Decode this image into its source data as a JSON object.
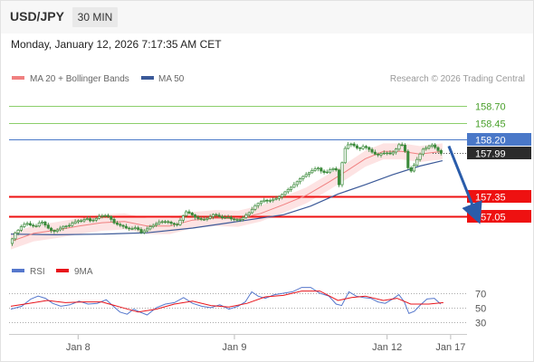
{
  "header": {
    "symbol": "USD/JPY",
    "timeframe": "30 MIN",
    "datetime": "Monday, January 12, 2026 7:17:35 AM CET"
  },
  "legend": {
    "ma20_bb": "MA 20 + Bollinger Bands",
    "ma50": "MA 50",
    "credit": "Research © 2026 Trading Central"
  },
  "colors": {
    "candle": "#3a8a3a",
    "ma20": "#f08080",
    "ma50": "#3b5998",
    "bb_fill": "#fde3e3",
    "resistance": "#8ccf6b",
    "pivot": "#4a78c8",
    "support": "#ee1111",
    "rsi": "#5577cc",
    "rsi_ma": "#e8141b",
    "arrow": "#2a5caa"
  },
  "chart_data": [
    {
      "type": "candlestick",
      "title": "",
      "ylim": [
        156.45,
        159.0
      ],
      "x_ticks": [
        "Jan 8",
        "Jan 9",
        "Jan 12",
        "Jan 17"
      ],
      "series": [
        {
          "name": "MA 20 + Bollinger Bands"
        },
        {
          "name": "MA 50"
        }
      ],
      "price_points": [
        [
          0,
          156.64
        ],
        [
          3,
          156.7
        ],
        [
          6,
          156.79
        ],
        [
          10,
          156.84
        ],
        [
          15,
          156.92
        ],
        [
          20,
          156.94
        ],
        [
          25,
          156.9
        ],
        [
          30,
          156.9
        ],
        [
          35,
          156.98
        ],
        [
          40,
          156.91
        ],
        [
          45,
          156.84
        ],
        [
          50,
          156.82
        ],
        [
          55,
          156.86
        ],
        [
          60,
          156.9
        ],
        [
          65,
          156.9
        ],
        [
          70,
          156.95
        ],
        [
          75,
          156.98
        ],
        [
          80,
          156.98
        ],
        [
          85,
          157.02
        ],
        [
          90,
          156.97
        ],
        [
          95,
          157.01
        ],
        [
          100,
          157.05
        ],
        [
          105,
          157.06
        ],
        [
          110,
          157.04
        ],
        [
          115,
          156.95
        ],
        [
          120,
          156.92
        ],
        [
          125,
          156.9
        ],
        [
          130,
          156.86
        ],
        [
          135,
          156.86
        ],
        [
          140,
          156.88
        ],
        [
          145,
          156.8
        ],
        [
          150,
          156.84
        ],
        [
          155,
          156.89
        ],
        [
          160,
          156.92
        ],
        [
          165,
          156.96
        ],
        [
          170,
          156.97
        ],
        [
          175,
          156.96
        ],
        [
          180,
          156.93
        ],
        [
          185,
          156.92
        ],
        [
          190,
          157.03
        ],
        [
          195,
          157.12
        ],
        [
          200,
          157.08
        ],
        [
          205,
          157.03
        ],
        [
          210,
          157.0
        ],
        [
          215,
          157.0
        ],
        [
          220,
          157.03
        ],
        [
          225,
          157.08
        ],
        [
          230,
          157.05
        ],
        [
          235,
          157.02
        ],
        [
          240,
          157.04
        ],
        [
          245,
          157.0
        ],
        [
          250,
          157.0
        ],
        [
          255,
          157.0
        ],
        [
          260,
          157.06
        ],
        [
          265,
          157.11
        ],
        [
          270,
          157.2
        ],
        [
          275,
          157.25
        ],
        [
          280,
          157.29
        ],
        [
          285,
          157.27
        ],
        [
          290,
          157.3
        ],
        [
          295,
          157.32
        ],
        [
          300,
          157.37
        ],
        [
          305,
          157.43
        ],
        [
          310,
          157.48
        ],
        [
          315,
          157.54
        ],
        [
          320,
          157.61
        ],
        [
          325,
          157.66
        ],
        [
          330,
          157.7
        ],
        [
          335,
          157.75
        ],
        [
          340,
          157.77
        ],
        [
          345,
          157.7
        ],
        [
          350,
          157.71
        ],
        [
          355,
          157.77
        ],
        [
          360,
          157.74
        ],
        [
          363,
          157.52
        ],
        [
          366,
          157.83
        ],
        [
          370,
          158.09
        ],
        [
          375,
          158.14
        ],
        [
          380,
          158.1
        ],
        [
          385,
          158.05
        ],
        [
          390,
          158.1
        ],
        [
          395,
          158.06
        ],
        [
          400,
          158.0
        ],
        [
          405,
          157.96
        ],
        [
          410,
          157.99
        ],
        [
          415,
          158.0
        ],
        [
          420,
          157.98
        ],
        [
          425,
          158.04
        ],
        [
          430,
          158.14
        ],
        [
          435,
          158.08
        ],
        [
          438,
          157.79
        ],
        [
          442,
          157.72
        ],
        [
          445,
          157.8
        ],
        [
          450,
          157.93
        ],
        [
          455,
          158.05
        ],
        [
          460,
          158.08
        ],
        [
          465,
          158.12
        ],
        [
          470,
          158.06
        ],
        [
          475,
          157.99
        ]
      ],
      "ma20_points": [
        [
          0,
          156.67
        ],
        [
          25,
          156.79
        ],
        [
          50,
          156.84
        ],
        [
          75,
          156.9
        ],
        [
          100,
          156.95
        ],
        [
          125,
          156.97
        ],
        [
          150,
          156.9
        ],
        [
          175,
          156.9
        ],
        [
          200,
          156.99
        ],
        [
          225,
          157.02
        ],
        [
          250,
          157.01
        ],
        [
          275,
          157.09
        ],
        [
          300,
          157.22
        ],
        [
          325,
          157.36
        ],
        [
          350,
          157.56
        ],
        [
          370,
          157.73
        ],
        [
          390,
          157.91
        ],
        [
          410,
          158.02
        ],
        [
          430,
          158.02
        ],
        [
          450,
          157.98
        ],
        [
          475,
          158.02
        ]
      ],
      "ma50_points": [
        [
          0,
          156.78
        ],
        [
          50,
          156.77
        ],
        [
          100,
          156.78
        ],
        [
          150,
          156.8
        ],
        [
          200,
          156.87
        ],
        [
          250,
          156.97
        ],
        [
          300,
          157.07
        ],
        [
          330,
          157.2
        ],
        [
          360,
          157.38
        ],
        [
          390,
          157.52
        ],
        [
          420,
          157.67
        ],
        [
          450,
          157.8
        ],
        [
          475,
          157.88
        ]
      ],
      "bb_width": 0.12,
      "levels": [
        {
          "label": "158.70",
          "value": 158.7,
          "kind": "resistance"
        },
        {
          "label": "158.45",
          "value": 158.45,
          "kind": "resistance"
        },
        {
          "label": "158.20",
          "value": 158.2,
          "kind": "pivot"
        },
        {
          "label": "157.99",
          "value": 157.99,
          "kind": "last"
        },
        {
          "label": "157.35",
          "value": 157.35,
          "kind": "support"
        },
        {
          "label": "157.05",
          "value": 157.05,
          "kind": "support"
        }
      ],
      "forecast_arrow": {
        "from": [
          482,
          158.1
        ],
        "to": [
          512,
          157.08
        ]
      }
    },
    {
      "type": "line",
      "title": "",
      "ylim": [
        15,
        85
      ],
      "y_ticks": [
        "70",
        "50",
        "30"
      ],
      "series": [
        {
          "name": "RSI",
          "points": [
            [
              0,
              48
            ],
            [
              12,
              52
            ],
            [
              22,
              62
            ],
            [
              30,
              66
            ],
            [
              38,
              63
            ],
            [
              46,
              56
            ],
            [
              55,
              52
            ],
            [
              65,
              54
            ],
            [
              75,
              59
            ],
            [
              85,
              55
            ],
            [
              95,
              56
            ],
            [
              105,
              61
            ],
            [
              112,
              53
            ],
            [
              120,
              44
            ],
            [
              128,
              41
            ],
            [
              135,
              48
            ],
            [
              142,
              44
            ],
            [
              150,
              40
            ],
            [
              160,
              50
            ],
            [
              170,
              55
            ],
            [
              180,
              57
            ],
            [
              190,
              64
            ],
            [
              200,
              56
            ],
            [
              210,
              52
            ],
            [
              220,
              50
            ],
            [
              230,
              54
            ],
            [
              240,
              48
            ],
            [
              250,
              52
            ],
            [
              258,
              58
            ],
            [
              265,
              72
            ],
            [
              272,
              66
            ],
            [
              280,
              63
            ],
            [
              290,
              68
            ],
            [
              300,
              70
            ],
            [
              310,
              72
            ],
            [
              320,
              78
            ],
            [
              330,
              78
            ],
            [
              340,
              70
            ],
            [
              350,
              66
            ],
            [
              358,
              55
            ],
            [
              364,
              53
            ],
            [
              372,
              72
            ],
            [
              380,
              66
            ],
            [
              388,
              64
            ],
            [
              396,
              63
            ],
            [
              404,
              58
            ],
            [
              412,
              56
            ],
            [
              420,
              62
            ],
            [
              427,
              68
            ],
            [
              433,
              58
            ],
            [
              438,
              42
            ],
            [
              444,
              45
            ],
            [
              450,
              53
            ],
            [
              458,
              62
            ],
            [
              466,
              63
            ],
            [
              473,
              55
            ]
          ]
        },
        {
          "name": "9MA",
          "points": [
            [
              0,
              52
            ],
            [
              20,
              56
            ],
            [
              40,
              60
            ],
            [
              60,
              57
            ],
            [
              80,
              58
            ],
            [
              100,
              58
            ],
            [
              120,
              51
            ],
            [
              140,
              44
            ],
            [
              160,
              48
            ],
            [
              180,
              55
            ],
            [
              200,
              59
            ],
            [
              220,
              53
            ],
            [
              240,
              51
            ],
            [
              260,
              56
            ],
            [
              280,
              65
            ],
            [
              300,
              67
            ],
            [
              320,
              73
            ],
            [
              340,
              73
            ],
            [
              360,
              60
            ],
            [
              375,
              64
            ],
            [
              390,
              66
            ],
            [
              410,
              60
            ],
            [
              425,
              63
            ],
            [
              440,
              55
            ],
            [
              460,
              55
            ],
            [
              476,
              57
            ]
          ]
        }
      ]
    }
  ]
}
